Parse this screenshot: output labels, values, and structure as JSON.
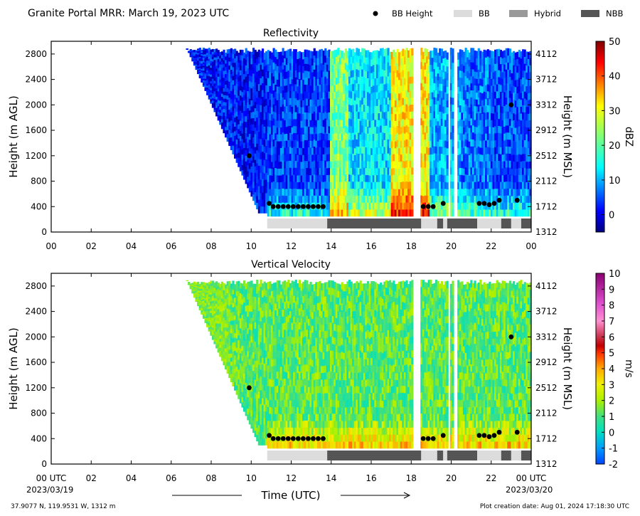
{
  "header": {
    "title": "Granite Portal MRR:  March 19, 2023 UTC",
    "legend": [
      {
        "label": "BB Height",
        "kind": "dot",
        "color": "#000000"
      },
      {
        "label": "BB",
        "kind": "swatch",
        "color": "#dcdcdc"
      },
      {
        "label": "Hybrid",
        "kind": "swatch",
        "color": "#999999"
      },
      {
        "label": "NBB",
        "kind": "swatch",
        "color": "#555555"
      }
    ]
  },
  "footer": {
    "location": "37.9077 N, 119.9531 W, 1312 m",
    "creation": "Plot creation date: Aug 01, 2024 17:18:30 UTC",
    "xlabel": "Time (UTC)",
    "start_date": "2023/03/19",
    "end_date": "2023/03/20"
  },
  "chart_data": [
    {
      "type": "heatmap",
      "title": "Reflectivity",
      "ylabel": "Height (m AGL)",
      "y2label": "Height (m MSL)",
      "xlim": [
        0,
        24
      ],
      "ylim": [
        0,
        3000
      ],
      "x_ticks": [
        "00",
        "02",
        "04",
        "06",
        "08",
        "10",
        "12",
        "14",
        "16",
        "18",
        "20",
        "22",
        "00"
      ],
      "y_ticks": [
        0,
        400,
        800,
        1200,
        1600,
        2000,
        2400,
        2800
      ],
      "y2_ticks": [
        1312,
        1712,
        2112,
        2512,
        2912,
        3312,
        3712,
        4112
      ],
      "colorbar": {
        "label": "dBZ",
        "min": -5,
        "max": 50,
        "ticks": [
          0,
          10,
          20,
          30,
          40,
          50
        ]
      },
      "bb_height": [
        [
          9.9,
          1200
        ],
        [
          10.9,
          450
        ],
        [
          11.1,
          400
        ],
        [
          11.35,
          400
        ],
        [
          11.6,
          400
        ],
        [
          11.85,
          400
        ],
        [
          12.1,
          400
        ],
        [
          12.35,
          400
        ],
        [
          12.6,
          400
        ],
        [
          12.85,
          400
        ],
        [
          13.1,
          400
        ],
        [
          13.35,
          400
        ],
        [
          13.6,
          400
        ],
        [
          18.6,
          400
        ],
        [
          18.85,
          400
        ],
        [
          19.1,
          400
        ],
        [
          19.6,
          450
        ],
        [
          21.4,
          450
        ],
        [
          21.65,
          450
        ],
        [
          21.9,
          430
        ],
        [
          22.15,
          450
        ],
        [
          22.4,
          500
        ],
        [
          23.0,
          2000
        ],
        [
          23.3,
          500
        ]
      ],
      "bb_type_bar": [
        {
          "start": 10.8,
          "end": 13.8,
          "type": "BB"
        },
        {
          "start": 13.8,
          "end": 18.5,
          "type": "NBB"
        },
        {
          "start": 18.5,
          "end": 19.3,
          "type": "BB"
        },
        {
          "start": 19.3,
          "end": 19.6,
          "type": "NBB"
        },
        {
          "start": 19.6,
          "end": 19.8,
          "type": "BB"
        },
        {
          "start": 19.8,
          "end": 21.3,
          "type": "NBB"
        },
        {
          "start": 21.3,
          "end": 22.5,
          "type": "BB"
        },
        {
          "start": 22.5,
          "end": 23.0,
          "type": "NBB"
        },
        {
          "start": 23.0,
          "end": 23.5,
          "type": "BB"
        },
        {
          "start": 23.5,
          "end": 24.0,
          "type": "NBB"
        }
      ]
    },
    {
      "type": "heatmap",
      "title": "Vertical Velocity",
      "ylabel": "Height (m AGL)",
      "y2label": "Height (m MSL)",
      "xlim": [
        0,
        24
      ],
      "ylim": [
        0,
        3000
      ],
      "x_ticks": [
        "00 UTC",
        "02",
        "04",
        "06",
        "08",
        "10",
        "12",
        "14",
        "16",
        "18",
        "20",
        "22",
        "00 UTC"
      ],
      "y_ticks": [
        0,
        400,
        800,
        1200,
        1600,
        2000,
        2400,
        2800
      ],
      "y2_ticks": [
        1312,
        1712,
        2112,
        2512,
        2912,
        3312,
        3712,
        4112
      ],
      "colorbar": {
        "label": "m/s",
        "min": -2,
        "max": 10,
        "ticks": [
          -2,
          -1,
          0,
          1,
          2,
          3,
          4,
          5,
          6,
          7,
          8,
          9,
          10
        ]
      },
      "bb_height": [
        [
          9.9,
          1200
        ],
        [
          10.9,
          450
        ],
        [
          11.1,
          400
        ],
        [
          11.35,
          400
        ],
        [
          11.6,
          400
        ],
        [
          11.85,
          400
        ],
        [
          12.1,
          400
        ],
        [
          12.35,
          400
        ],
        [
          12.6,
          400
        ],
        [
          12.85,
          400
        ],
        [
          13.1,
          400
        ],
        [
          13.35,
          400
        ],
        [
          13.6,
          400
        ],
        [
          18.6,
          400
        ],
        [
          18.85,
          400
        ],
        [
          19.1,
          400
        ],
        [
          19.6,
          450
        ],
        [
          21.4,
          450
        ],
        [
          21.65,
          450
        ],
        [
          21.9,
          430
        ],
        [
          22.15,
          450
        ],
        [
          22.4,
          500
        ],
        [
          23.0,
          2000
        ],
        [
          23.3,
          500
        ]
      ],
      "bb_type_bar": [
        {
          "start": 10.8,
          "end": 13.8,
          "type": "BB"
        },
        {
          "start": 13.8,
          "end": 18.5,
          "type": "NBB"
        },
        {
          "start": 18.5,
          "end": 19.3,
          "type": "BB"
        },
        {
          "start": 19.3,
          "end": 19.6,
          "type": "NBB"
        },
        {
          "start": 19.6,
          "end": 19.8,
          "type": "BB"
        },
        {
          "start": 19.8,
          "end": 21.3,
          "type": "NBB"
        },
        {
          "start": 21.3,
          "end": 22.5,
          "type": "BB"
        },
        {
          "start": 22.5,
          "end": 23.0,
          "type": "NBB"
        },
        {
          "start": 23.0,
          "end": 23.5,
          "type": "BB"
        },
        {
          "start": 23.5,
          "end": 24.0,
          "type": "NBB"
        }
      ]
    }
  ]
}
